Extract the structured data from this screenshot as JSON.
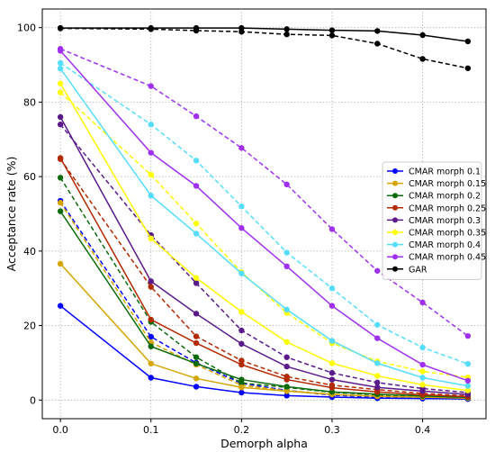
{
  "chart_data": {
    "type": "line",
    "title": "",
    "xlabel": "Demorph alpha",
    "ylabel": "Acceptance rate (%)",
    "xlim": [
      -0.02,
      0.47
    ],
    "ylim": [
      -5,
      105
    ],
    "xticks": [
      0.0,
      0.1,
      0.2,
      0.3,
      0.4
    ],
    "xtick_labels": [
      "0.0",
      "0.1",
      "0.2",
      "0.3",
      "0.4"
    ],
    "yticks": [
      0,
      20,
      40,
      60,
      80,
      100
    ],
    "ytick_labels": [
      "0",
      "20",
      "40",
      "60",
      "80",
      "100"
    ],
    "grid": true,
    "legend_position": "center-right",
    "x": [
      0.0,
      0.1,
      0.15,
      0.2,
      0.25,
      0.3,
      0.35,
      0.4,
      0.45
    ],
    "series": [
      {
        "name": "CMAR morph 0.1",
        "color": "#0000ff",
        "style": "solid",
        "values": [
          25.3,
          6.0,
          3.6,
          2.0,
          1.2,
          0.8,
          0.5,
          0.4,
          0.3
        ]
      },
      {
        "name": "CMAR morph 0.15",
        "color": "#d4a500",
        "style": "solid",
        "values": [
          36.6,
          9.8,
          5.8,
          3.4,
          2.4,
          1.5,
          1.0,
          0.8,
          0.5
        ]
      },
      {
        "name": "CMAR morph 0.2",
        "color": "#0b6b0b",
        "style": "solid",
        "values": [
          50.7,
          14.4,
          9.8,
          5.5,
          3.6,
          2.2,
          1.6,
          1.1,
          0.7
        ]
      },
      {
        "name": "CMAR morph 0.25",
        "color": "#b22a00",
        "style": "solid",
        "values": [
          65.0,
          21.6,
          15.3,
          9.5,
          5.5,
          3.3,
          2.2,
          1.4,
          0.9
        ]
      },
      {
        "name": "CMAR morph 0.3",
        "color": "#5a1a8a",
        "style": "solid",
        "values": [
          76.0,
          31.9,
          23.2,
          15.1,
          9.0,
          5.5,
          3.4,
          2.4,
          1.5
        ]
      },
      {
        "name": "CMAR morph 0.35",
        "color": "#ffff00",
        "style": "solid",
        "values": [
          85.0,
          43.4,
          32.8,
          23.7,
          15.6,
          9.9,
          6.5,
          4.1,
          2.6
        ]
      },
      {
        "name": "CMAR morph 0.4",
        "color": "#55ddff",
        "style": "solid",
        "values": [
          89.0,
          54.9,
          44.7,
          34.0,
          24.3,
          15.9,
          9.9,
          6.0,
          3.8
        ]
      },
      {
        "name": "CMAR morph 0.45",
        "color": "#a030f0",
        "style": "solid",
        "values": [
          93.8,
          66.4,
          57.5,
          46.2,
          35.9,
          25.3,
          16.6,
          9.5,
          5.2
        ]
      },
      {
        "name": "GAR",
        "color": "#000000",
        "style": "solid",
        "values": [
          99.9,
          99.9,
          99.9,
          99.9,
          99.6,
          99.3,
          99.1,
          98.0,
          96.3
        ]
      },
      {
        "color": "#0000ff",
        "style": "dashed",
        "values": [
          53.5,
          17.0,
          10.0,
          4.5,
          2.6,
          1.3,
          0.8,
          0.5,
          0.3
        ]
      },
      {
        "color": "#d4a500",
        "style": "dashed",
        "values": [
          53.0,
          15.5,
          9.5,
          4.0,
          2.5,
          1.6,
          1.0,
          0.7,
          0.5
        ]
      },
      {
        "color": "#0b6b0b",
        "style": "dashed",
        "values": [
          59.7,
          21.0,
          11.5,
          4.6,
          3.4,
          2.1,
          1.4,
          1.0,
          0.7
        ]
      },
      {
        "color": "#b22a00",
        "style": "dashed",
        "values": [
          64.7,
          30.4,
          17.1,
          10.6,
          6.3,
          4.0,
          2.8,
          1.8,
          1.1
        ]
      },
      {
        "color": "#5a1a8a",
        "style": "dashed",
        "values": [
          74.0,
          44.3,
          31.4,
          18.7,
          11.5,
          7.3,
          4.7,
          3.1,
          2.0
        ]
      },
      {
        "color": "#ffff00",
        "style": "dashed",
        "values": [
          82.6,
          60.5,
          47.4,
          34.3,
          23.4,
          15.3,
          10.4,
          7.7,
          6.1
        ]
      },
      {
        "color": "#55ddff",
        "style": "dashed",
        "values": [
          90.5,
          74.0,
          64.3,
          52.0,
          39.6,
          30.0,
          20.2,
          14.1,
          9.7
        ]
      },
      {
        "color": "#a030f0",
        "style": "dashed",
        "values": [
          94.3,
          84.3,
          76.2,
          67.7,
          57.9,
          45.9,
          34.7,
          26.2,
          17.2
        ]
      },
      {
        "color": "#000000",
        "style": "dashed",
        "values": [
          99.8,
          99.6,
          99.2,
          98.9,
          98.2,
          97.9,
          95.7,
          91.6,
          89.1
        ]
      }
    ]
  }
}
